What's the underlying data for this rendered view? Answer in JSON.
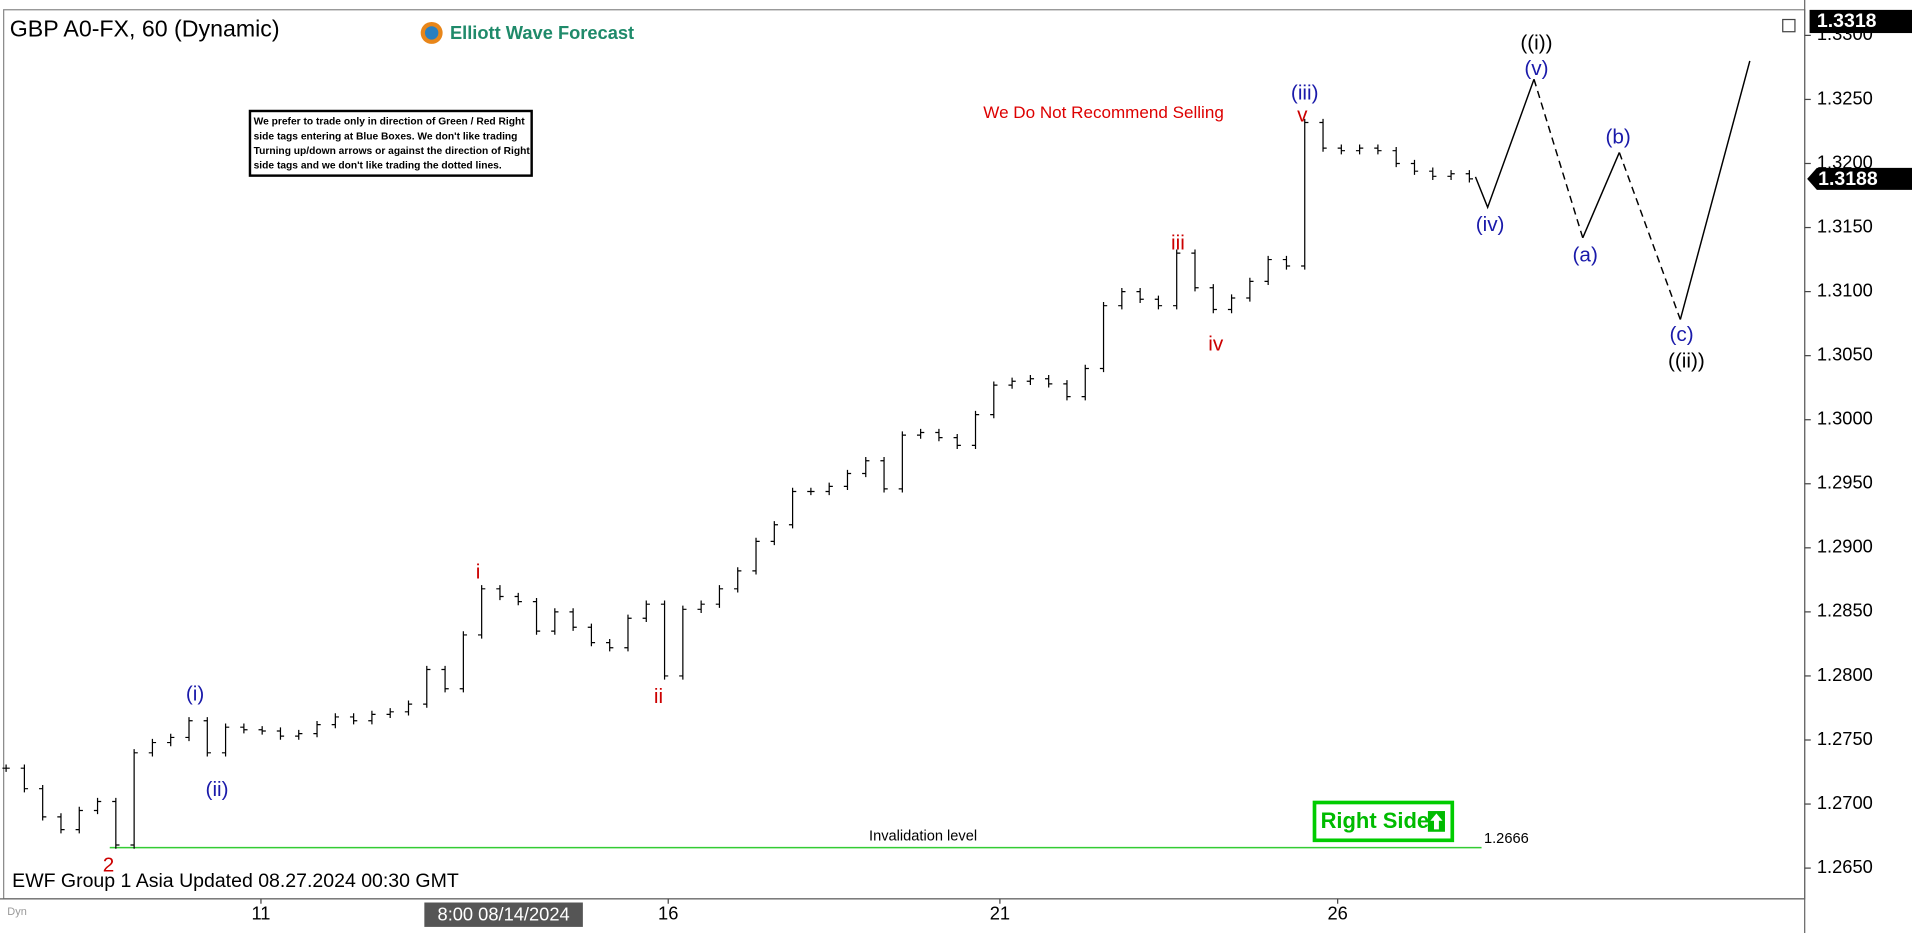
{
  "chart_data": {
    "type": "ohlc",
    "title": "GBP A0-FX, 60 (Dynamic)",
    "brand": "Elliott Wave Forecast",
    "note_lines": [
      "We prefer to trade only in direction of Green / Red Right",
      "side tags entering at Blue Boxes. We don't like trading",
      "Turning up/down arrows or against the direction of Right",
      "side tags and we don't like trading the dotted lines."
    ],
    "warning": "We Do Not Recommend Selling",
    "footer": "EWF Group 1 Asia Updated 08.27.2024 00:30 GMT",
    "cursor_date": "8:00 08/14/2024",
    "corner_tag": "Dyn",
    "badge": "Right Side",
    "x_tick_labels": [
      "11",
      "16",
      "21",
      "26"
    ],
    "color": "#000000",
    "values": [
      1.2728,
      1.2712,
      1.269,
      1.268,
      1.2695,
      1.2702,
      1.2668,
      1.274,
      1.2748,
      1.2752,
      1.2765,
      1.274,
      1.276,
      1.2758,
      1.2757,
      1.2753,
      1.2755,
      1.2762,
      1.2768,
      1.2765,
      1.277,
      1.2772,
      1.2778,
      1.2805,
      1.279,
      1.2832,
      1.2868,
      1.2862,
      1.2858,
      1.2835,
      1.285,
      1.2838,
      1.2826,
      1.2822,
      1.2845,
      1.2856,
      1.28,
      1.2852,
      1.2856,
      1.2868,
      1.2882,
      1.2905,
      1.2918,
      1.2944,
      1.2944,
      1.2948,
      1.2958,
      1.2968,
      1.2946,
      1.2988,
      1.299,
      1.2986,
      1.298,
      1.3004,
      1.3027,
      1.303,
      1.3032,
      1.3028,
      1.3018,
      1.304,
      1.3089,
      1.31,
      1.3094,
      1.3089,
      1.313,
      1.3103,
      1.3086,
      1.3095,
      1.3108,
      1.3125,
      1.312,
      1.3232,
      1.3212,
      1.321,
      1.3212,
      1.321,
      1.32,
      1.3194,
      1.319,
      1.3192,
      1.3188
    ],
    "ylim": [
      1.2626,
      1.332
    ],
    "yticks": [
      {
        "value": 1.265,
        "label": "1.2650"
      },
      {
        "value": 1.27,
        "label": "1.2700"
      },
      {
        "value": 1.275,
        "label": "1.2750"
      },
      {
        "value": 1.28,
        "label": "1.2800"
      },
      {
        "value": 1.285,
        "label": "1.2850"
      },
      {
        "value": 1.29,
        "label": "1.2900"
      },
      {
        "value": 1.295,
        "label": "1.2950"
      },
      {
        "value": 1.3,
        "label": "1.3000"
      },
      {
        "value": 1.305,
        "label": "1.3050"
      },
      {
        "value": 1.31,
        "label": "1.3100"
      },
      {
        "value": 1.315,
        "label": "1.3150"
      },
      {
        "value": 1.32,
        "label": "1.3200"
      },
      {
        "value": 1.325,
        "label": "1.3250"
      },
      {
        "value": 1.33,
        "label": "1.3300"
      }
    ],
    "last_price": 1.3188,
    "high_price": 1.3318,
    "invalidation": {
      "label": "Invalidation level",
      "value": 1.2666,
      "color": "#33cc33"
    },
    "wave_labels": [
      {
        "text": "2",
        "color": "#cc0000"
      },
      {
        "text": "(i)",
        "color": "#1a1aaa"
      },
      {
        "text": "(ii)",
        "color": "#1a1aaa"
      },
      {
        "text": "i",
        "color": "#cc0000"
      },
      {
        "text": "ii",
        "color": "#cc0000"
      },
      {
        "text": "iii",
        "color": "#cc0000"
      },
      {
        "text": "iv",
        "color": "#cc0000"
      },
      {
        "text": "v",
        "color": "#cc0000"
      },
      {
        "text": "(iii)",
        "color": "#1a1aaa"
      },
      {
        "text": "(iv)",
        "color": "#1a1aaa"
      },
      {
        "text": "(v)",
        "color": "#1a1aaa"
      },
      {
        "text": "((i))",
        "color": "#000000"
      },
      {
        "text": "(a)",
        "color": "#1a1aaa"
      },
      {
        "text": "(b)",
        "color": "#1a1aaa"
      },
      {
        "text": "(c)",
        "color": "#1a1aaa"
      },
      {
        "text": "((ii))",
        "color": "#000000"
      }
    ]
  }
}
